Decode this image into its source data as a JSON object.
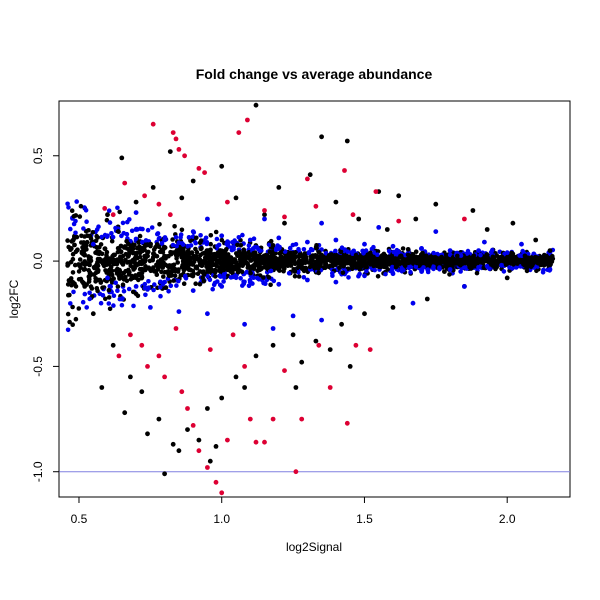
{
  "chart_data": {
    "type": "scatter",
    "title": "Fold change vs average abundance",
    "xlabel": "log2Signal",
    "ylabel": "log2FC",
    "xlim": [
      0.43,
      2.22
    ],
    "ylim": [
      -1.12,
      0.76
    ],
    "x_ticks": [
      0.5,
      1.0,
      1.5,
      2.0
    ],
    "x_tick_labels": [
      "0.5",
      "1.0",
      "1.5",
      "2.0"
    ],
    "y_ticks": [
      -1.0,
      -0.5,
      0.0,
      0.5
    ],
    "y_tick_labels": [
      "-1.0",
      "-0.5",
      "0.0",
      "0.5"
    ],
    "reference_line": {
      "y": -1.0,
      "color": "#8080e0"
    },
    "grid": false,
    "legend": "none",
    "series": [
      {
        "color": "#000000",
        "points": [
          [
            1.12,
            0.74
          ],
          [
            1.35,
            0.59
          ],
          [
            1.44,
            0.57
          ],
          [
            0.65,
            0.49
          ],
          [
            0.82,
            0.52
          ],
          [
            1.31,
            0.41
          ],
          [
            1.62,
            0.31
          ],
          [
            1.88,
            0.24
          ],
          [
            2.02,
            0.18
          ],
          [
            1.75,
            0.27
          ],
          [
            1.55,
            0.33
          ],
          [
            1.0,
            0.45
          ],
          [
            0.9,
            0.38
          ],
          [
            1.2,
            0.35
          ],
          [
            1.05,
            0.3
          ],
          [
            0.7,
            0.28
          ],
          [
            0.6,
            0.22
          ],
          [
            1.4,
            0.28
          ],
          [
            1.68,
            0.2
          ],
          [
            1.93,
            0.15
          ],
          [
            2.1,
            0.1
          ],
          [
            2.15,
            0.05
          ],
          [
            0.48,
            0.1
          ],
          [
            0.52,
            -0.12
          ],
          [
            0.55,
            -0.25
          ],
          [
            0.62,
            -0.4
          ],
          [
            0.68,
            -0.55
          ],
          [
            0.72,
            -0.62
          ],
          [
            0.78,
            -0.75
          ],
          [
            0.8,
            -1.01
          ],
          [
            0.85,
            -0.9
          ],
          [
            0.88,
            -0.8
          ],
          [
            0.95,
            -0.7
          ],
          [
            1.0,
            -0.65
          ],
          [
            1.05,
            -0.55
          ],
          [
            1.12,
            -0.45
          ],
          [
            1.18,
            -0.4
          ],
          [
            1.25,
            -0.35
          ],
          [
            1.33,
            -0.38
          ],
          [
            1.42,
            -0.3
          ],
          [
            1.5,
            -0.25
          ],
          [
            1.6,
            -0.22
          ],
          [
            1.72,
            -0.18
          ],
          [
            1.85,
            -0.12
          ],
          [
            2.0,
            -0.08
          ],
          [
            0.74,
            -0.82
          ],
          [
            0.83,
            -0.87
          ],
          [
            0.92,
            -0.85
          ],
          [
            0.98,
            -0.88
          ],
          [
            1.08,
            -0.6
          ],
          [
            1.28,
            -0.48
          ],
          [
            1.38,
            -0.42
          ],
          [
            0.58,
            -0.6
          ],
          [
            0.66,
            -0.72
          ],
          [
            1.15,
            0.22
          ],
          [
            1.22,
            0.18
          ],
          [
            0.76,
            0.35
          ],
          [
            0.86,
            0.3
          ],
          [
            1.48,
            0.2
          ],
          [
            1.58,
            0.15
          ],
          [
            1.78,
            -0.05
          ],
          [
            1.95,
            0.02
          ],
          [
            0.96,
            -0.95
          ],
          [
            1.26,
            -0.6
          ],
          [
            1.45,
            -0.5
          ]
        ]
      },
      {
        "color": "#0000ee",
        "points": [
          [
            0.55,
            0.08
          ],
          [
            0.6,
            0.12
          ],
          [
            0.7,
            0.15
          ],
          [
            0.8,
            0.1
          ],
          [
            0.9,
            0.14
          ],
          [
            1.0,
            0.12
          ],
          [
            1.1,
            0.1
          ],
          [
            1.2,
            0.11
          ],
          [
            1.3,
            0.09
          ],
          [
            1.4,
            0.1
          ],
          [
            1.5,
            0.08
          ],
          [
            1.6,
            0.07
          ],
          [
            1.7,
            0.06
          ],
          [
            1.8,
            0.05
          ],
          [
            1.9,
            0.05
          ],
          [
            2.0,
            0.04
          ],
          [
            2.15,
            -0.04
          ],
          [
            0.6,
            -0.08
          ],
          [
            0.7,
            -0.12
          ],
          [
            0.8,
            -0.1
          ],
          [
            0.9,
            -0.14
          ],
          [
            1.0,
            -0.12
          ],
          [
            1.1,
            -0.1
          ],
          [
            1.2,
            -0.11
          ],
          [
            1.3,
            -0.09
          ],
          [
            1.4,
            -0.1
          ],
          [
            1.5,
            -0.07
          ],
          [
            1.6,
            -0.06
          ],
          [
            1.7,
            -0.05
          ],
          [
            1.8,
            -0.04
          ],
          [
            1.92,
            0.09
          ],
          [
            1.85,
            -0.12
          ],
          [
            1.67,
            -0.2
          ],
          [
            1.45,
            -0.22
          ],
          [
            1.35,
            -0.28
          ],
          [
            1.25,
            -0.26
          ],
          [
            1.18,
            -0.32
          ],
          [
            1.08,
            -0.3
          ],
          [
            0.95,
            -0.25
          ],
          [
            0.85,
            -0.24
          ],
          [
            0.75,
            -0.22
          ],
          [
            0.65,
            -0.18
          ],
          [
            1.15,
            0.2
          ],
          [
            1.35,
            0.18
          ],
          [
            1.55,
            0.16
          ],
          [
            1.75,
            0.14
          ],
          [
            0.7,
            0.23
          ],
          [
            0.95,
            0.2
          ],
          [
            2.05,
            0.08
          ],
          [
            1.98,
            -0.02
          ]
        ]
      },
      {
        "color": "#dd0033",
        "points": [
          [
            0.76,
            0.65
          ],
          [
            0.83,
            0.61
          ],
          [
            0.84,
            0.58
          ],
          [
            1.09,
            0.67
          ],
          [
            0.85,
            0.53
          ],
          [
            0.87,
            0.5
          ],
          [
            1.06,
            0.61
          ],
          [
            0.92,
            0.44
          ],
          [
            0.94,
            0.42
          ],
          [
            1.3,
            0.39
          ],
          [
            1.43,
            0.43
          ],
          [
            1.54,
            0.33
          ],
          [
            0.66,
            0.37
          ],
          [
            0.73,
            0.31
          ],
          [
            0.78,
            0.27
          ],
          [
            0.82,
            0.22
          ],
          [
            0.62,
            0.22
          ],
          [
            0.59,
            0.25
          ],
          [
            1.02,
            0.28
          ],
          [
            1.15,
            0.24
          ],
          [
            1.22,
            0.21
          ],
          [
            1.33,
            0.26
          ],
          [
            1.46,
            0.22
          ],
          [
            1.85,
            0.2
          ],
          [
            1.62,
            0.19
          ],
          [
            0.68,
            -0.35
          ],
          [
            0.72,
            -0.4
          ],
          [
            0.78,
            -0.45
          ],
          [
            0.8,
            -0.55
          ],
          [
            0.86,
            -0.62
          ],
          [
            0.88,
            -0.7
          ],
          [
            0.9,
            -0.78
          ],
          [
            0.92,
            -0.9
          ],
          [
            0.95,
            -0.98
          ],
          [
            0.98,
            -1.05
          ],
          [
            1.0,
            -1.1
          ],
          [
            1.02,
            -0.85
          ],
          [
            1.1,
            -0.75
          ],
          [
            1.12,
            -0.86
          ],
          [
            1.15,
            -0.86
          ],
          [
            1.18,
            -0.75
          ],
          [
            1.22,
            -0.52
          ],
          [
            1.26,
            -1.0
          ],
          [
            1.28,
            -0.75
          ],
          [
            1.34,
            -0.4
          ],
          [
            1.38,
            -0.6
          ],
          [
            1.44,
            -0.77
          ],
          [
            1.47,
            -0.4
          ],
          [
            1.52,
            -0.42
          ],
          [
            0.74,
            -0.5
          ],
          [
            0.96,
            -0.42
          ],
          [
            1.04,
            -0.35
          ],
          [
            0.64,
            -0.45
          ],
          [
            0.84,
            -0.32
          ],
          [
            1.08,
            -0.5
          ]
        ]
      }
    ]
  }
}
